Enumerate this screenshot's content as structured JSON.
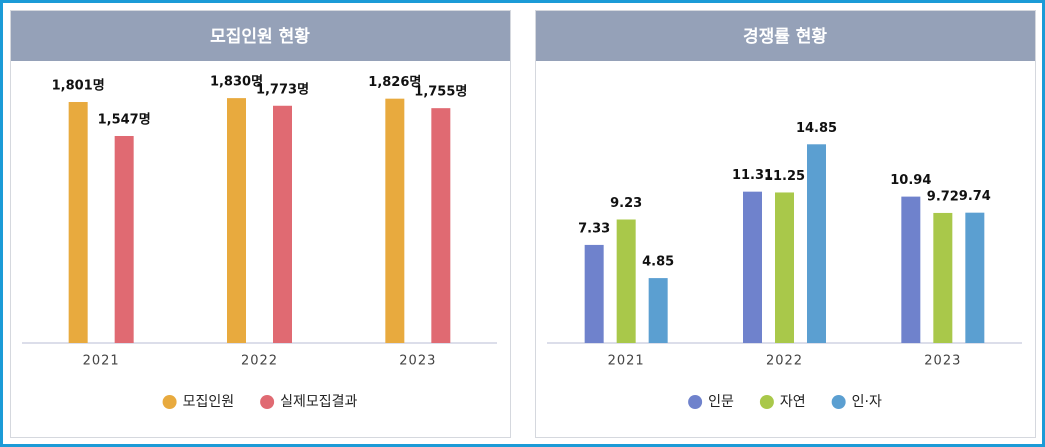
{
  "chart_data": [
    {
      "type": "bar",
      "title": "모집인원 현황",
      "categories": [
        "2021",
        "2022",
        "2023"
      ],
      "series": [
        {
          "name": "모집인원",
          "color": "#e8aa3e",
          "values": [
            1801,
            1830,
            1826
          ],
          "value_labels": [
            "1,801명",
            "1,830명",
            "1,826명"
          ]
        },
        {
          "name": "실제모집결과",
          "color": "#e06a72",
          "values": [
            1547,
            1773,
            1755
          ],
          "value_labels": [
            "1,547명",
            "1,773명",
            "1,755명"
          ]
        }
      ],
      "ylim": [
        0,
        2100
      ]
    },
    {
      "type": "bar",
      "title": "경쟁률 현황",
      "categories": [
        "2021",
        "2022",
        "2023"
      ],
      "series": [
        {
          "name": "인문",
          "color": "#6f82cc",
          "values": [
            7.33,
            11.31,
            10.94
          ]
        },
        {
          "name": "자연",
          "color": "#a9c84a",
          "values": [
            9.23,
            11.25,
            9.72
          ]
        },
        {
          "name": "인·자",
          "color": "#5b9fd1",
          "values": [
            4.85,
            14.85,
            9.74
          ]
        }
      ],
      "ylim": [
        0,
        21
      ]
    }
  ]
}
